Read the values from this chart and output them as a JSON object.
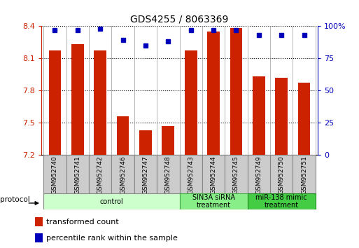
{
  "title": "GDS4255 / 8063369",
  "samples": [
    "GSM952740",
    "GSM952741",
    "GSM952742",
    "GSM952746",
    "GSM952747",
    "GSM952748",
    "GSM952743",
    "GSM952744",
    "GSM952745",
    "GSM952749",
    "GSM952750",
    "GSM952751"
  ],
  "transformed_counts": [
    8.17,
    8.23,
    8.17,
    7.56,
    7.43,
    7.47,
    8.17,
    8.35,
    8.38,
    7.93,
    7.92,
    7.87
  ],
  "percentile_ranks": [
    97,
    97,
    98,
    89,
    85,
    88,
    97,
    97,
    97,
    93,
    93,
    93
  ],
  "groups": [
    {
      "label": "control",
      "start": 0,
      "end": 6,
      "color": "#ccffcc",
      "border": "#aaddaa"
    },
    {
      "label": "SIN3A siRNA\ntreatment",
      "start": 6,
      "end": 9,
      "color": "#88ee88",
      "border": "#55aa55"
    },
    {
      "label": "miR-138 mimic\ntreatment",
      "start": 9,
      "end": 12,
      "color": "#44cc44",
      "border": "#22aa22"
    }
  ],
  "ylim_left": [
    7.2,
    8.4
  ],
  "ylim_right": [
    0,
    100
  ],
  "yticks_left": [
    7.2,
    7.5,
    7.8,
    8.1,
    8.4
  ],
  "yticks_right": [
    0,
    25,
    50,
    75,
    100
  ],
  "bar_color": "#cc2200",
  "dot_color": "#0000bb",
  "bar_width": 0.55,
  "bg_color": "#ffffff",
  "label_color_left": "#cc2200",
  "label_color_right": "#0000bb",
  "sample_box_color": "#cccccc",
  "sample_box_border": "#888888"
}
